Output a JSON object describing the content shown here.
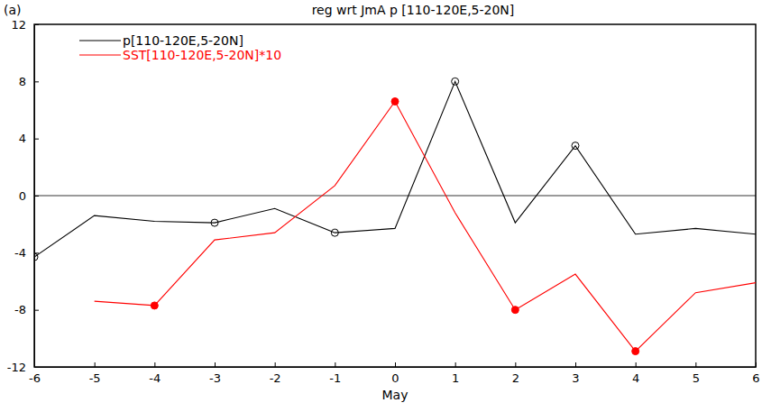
{
  "chart_data": {
    "type": "line",
    "title": "reg wrt JmA p [110-120E,5-20N]",
    "annotations": [
      "(a)"
    ],
    "x_label": "May",
    "x": [
      -6,
      -5,
      -4,
      -3,
      -2,
      -1,
      0,
      1,
      2,
      3,
      4,
      5,
      6
    ],
    "xlim": [
      -6,
      6
    ],
    "xticks": [
      -6,
      -5,
      -4,
      -3,
      -2,
      -1,
      0,
      1,
      2,
      3,
      4,
      5,
      6
    ],
    "ylim": [
      -12,
      12
    ],
    "yticks": [
      -12,
      -8,
      -4,
      0,
      4,
      8,
      12
    ],
    "grid": false,
    "legend": "upper left",
    "series": [
      {
        "name": "p[110-120E,5-20N]",
        "color": "#000000",
        "marker": "open-circle",
        "values": [
          -4.3,
          -1.4,
          -1.8,
          -1.9,
          -0.9,
          -2.6,
          -2.3,
          8.0,
          -1.9,
          3.5,
          -2.7,
          -2.3,
          -2.7
        ],
        "significant": [
          true,
          false,
          false,
          true,
          false,
          true,
          false,
          true,
          false,
          true,
          false,
          false,
          false
        ]
      },
      {
        "name": "SST[110-120E,5-20N]*10",
        "color": "#ff0000",
        "marker": "filled-circle",
        "values": [
          null,
          -7.4,
          -7.7,
          -3.1,
          -2.6,
          0.7,
          6.6,
          -1.2,
          -8.0,
          -5.5,
          -10.9,
          -6.8,
          -6.1
        ],
        "significant": [
          false,
          false,
          true,
          false,
          false,
          false,
          true,
          false,
          true,
          false,
          true,
          false,
          false
        ]
      }
    ]
  }
}
